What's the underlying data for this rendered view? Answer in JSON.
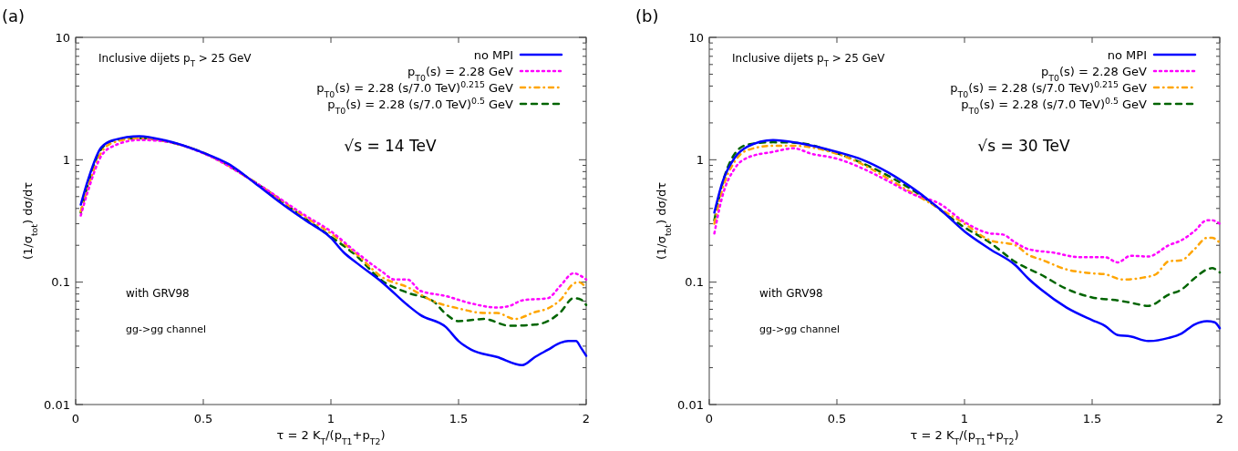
{
  "chart_data": [
    {
      "type": "line",
      "title": "(a)",
      "xlabel": "τ = 2 K$_{T}$/(p$_{T1}$+p$_{T2}$)",
      "ylabel": "(1/σ$_{tot}$) dσ/dτ",
      "log": "y",
      "legend": "top right",
      "grid": false,
      "annotations": [
        "Inclusive dijets p$_{T}$ > 25 GeV",
        "√s = 14 TeV",
        "with GRV98",
        "gg->gg channel"
      ],
      "xlim": [
        0,
        2
      ],
      "xticks": [
        0,
        0.5,
        1,
        1.5,
        2
      ],
      "ylim": [
        0.01,
        10
      ],
      "yticks": [
        0.01,
        {
          "value": 0.02,
          "label": null
        },
        {
          "value": 0.03,
          "label": null
        },
        {
          "value": 0.04,
          "label": null
        },
        {
          "value": 0.05,
          "label": null
        },
        {
          "value": 0.06,
          "label": null
        },
        {
          "value": 0.07,
          "label": null
        },
        {
          "value": 0.08,
          "label": null
        },
        {
          "value": 0.09,
          "label": null
        },
        0.1,
        {
          "value": 0.2,
          "label": null
        },
        {
          "value": 0.3,
          "label": null
        },
        {
          "value": 0.4,
          "label": null
        },
        {
          "value": 0.5,
          "label": null
        },
        {
          "value": 0.6,
          "label": null
        },
        {
          "value": 0.7,
          "label": null
        },
        {
          "value": 0.8,
          "label": null
        },
        {
          "value": 0.9,
          "label": null
        },
        1,
        {
          "value": 2,
          "label": null
        },
        {
          "value": 3,
          "label": null
        },
        {
          "value": 4,
          "label": null
        },
        {
          "value": 5,
          "label": null
        },
        {
          "value": 6,
          "label": null
        },
        {
          "value": 7,
          "label": null
        },
        {
          "value": 8,
          "label": null
        },
        {
          "value": 9,
          "label": null
        },
        10
      ],
      "series": [
        {
          "name": "no MPI",
          "color": "#0000ff",
          "line_style": "solid",
          "x": [
            0.02,
            0.05,
            0.1,
            0.15,
            0.25,
            0.35,
            0.5,
            0.6,
            0.7,
            0.8,
            0.9,
            1.0,
            1.05,
            1.1,
            1.2,
            1.3,
            1.35,
            1.45,
            1.5,
            1.55,
            1.65,
            1.75,
            1.8,
            1.85,
            1.9,
            1.93,
            1.96,
            1.98,
            2.0
          ],
          "values": [
            0.43,
            0.7,
            1.26,
            1.45,
            1.56,
            1.44,
            1.14,
            0.92,
            0.65,
            0.45,
            0.32,
            0.23,
            0.175,
            0.144,
            0.1,
            0.065,
            0.054,
            0.043,
            0.033,
            0.028,
            0.0245,
            0.021,
            0.0245,
            0.028,
            0.032,
            0.033,
            0.033,
            0.029,
            0.025
          ]
        },
        {
          "name": "p$_{T0}$(s) = 2.28 GeV",
          "color": "#ff00ff",
          "line_style": "dotted",
          "x": [
            0.02,
            0.05,
            0.1,
            0.15,
            0.25,
            0.35,
            0.5,
            0.7,
            0.9,
            1.0,
            1.1,
            1.2,
            1.25,
            1.3,
            1.35,
            1.45,
            1.55,
            1.65,
            1.7,
            1.75,
            1.85,
            1.9,
            1.95,
            2.0
          ],
          "values": [
            0.35,
            0.57,
            1.07,
            1.3,
            1.45,
            1.41,
            1.13,
            0.66,
            0.35,
            0.26,
            0.175,
            0.122,
            0.105,
            0.105,
            0.085,
            0.077,
            0.067,
            0.062,
            0.064,
            0.071,
            0.074,
            0.094,
            0.118,
            0.105
          ]
        },
        {
          "name": "p$_{T0}$(s) = 2.28 (s/7.0 TeV)$^{0.215}$ GeV",
          "color": "#ffa500",
          "line_style": "dashdot",
          "x": [
            0.02,
            0.05,
            0.1,
            0.15,
            0.25,
            0.35,
            0.5,
            0.7,
            0.9,
            1.0,
            1.1,
            1.2,
            1.3,
            1.4,
            1.5,
            1.6,
            1.65,
            1.72,
            1.8,
            1.85,
            1.9,
            1.95,
            1.97,
            2.0
          ],
          "values": [
            0.38,
            0.61,
            1.14,
            1.39,
            1.5,
            1.42,
            1.14,
            0.66,
            0.34,
            0.25,
            0.17,
            0.11,
            0.091,
            0.07,
            0.061,
            0.056,
            0.056,
            0.05,
            0.057,
            0.061,
            0.072,
            0.097,
            0.1,
            0.09
          ]
        },
        {
          "name": "p$_{T0}$(s) = 2.28 (s/7.0 TeV)$^{0.5}$ GeV",
          "color": "#006400",
          "line_style": "dashed",
          "x": [
            0.02,
            0.05,
            0.1,
            0.15,
            0.25,
            0.35,
            0.5,
            0.7,
            0.9,
            1.0,
            1.1,
            1.2,
            1.3,
            1.4,
            1.45,
            1.5,
            1.6,
            1.7,
            1.8,
            1.85,
            1.9,
            1.95,
            1.98,
            2.0
          ],
          "values": [
            0.37,
            0.65,
            1.22,
            1.44,
            1.5,
            1.42,
            1.14,
            0.66,
            0.33,
            0.235,
            0.164,
            0.103,
            0.082,
            0.07,
            0.055,
            0.048,
            0.05,
            0.044,
            0.045,
            0.048,
            0.057,
            0.074,
            0.072,
            0.065
          ]
        }
      ]
    },
    {
      "type": "line",
      "title": "(b)",
      "xlabel": "τ = 2 K$_{T}$/(p$_{T1}$+p$_{T2}$)",
      "ylabel": "(1/σ$_{tot}$) dσ/dτ",
      "log": "y",
      "legend": "top right",
      "grid": false,
      "annotations": [
        "Inclusive dijets p$_{T}$ > 25 GeV",
        "√s = 30 TeV",
        "with GRV98",
        "gg->gg channel"
      ],
      "xlim": [
        0,
        2
      ],
      "xticks": [
        0,
        0.5,
        1,
        1.5,
        2
      ],
      "ylim": [
        0.01,
        10
      ],
      "yticks": [
        0.01,
        {
          "value": 0.02,
          "label": null
        },
        {
          "value": 0.03,
          "label": null
        },
        {
          "value": 0.04,
          "label": null
        },
        {
          "value": 0.05,
          "label": null
        },
        {
          "value": 0.06,
          "label": null
        },
        {
          "value": 0.07,
          "label": null
        },
        {
          "value": 0.08,
          "label": null
        },
        {
          "value": 0.09,
          "label": null
        },
        0.1,
        {
          "value": 0.2,
          "label": null
        },
        {
          "value": 0.3,
          "label": null
        },
        {
          "value": 0.4,
          "label": null
        },
        {
          "value": 0.5,
          "label": null
        },
        {
          "value": 0.6,
          "label": null
        },
        {
          "value": 0.7,
          "label": null
        },
        {
          "value": 0.8,
          "label": null
        },
        {
          "value": 0.9,
          "label": null
        },
        1,
        {
          "value": 2,
          "label": null
        },
        {
          "value": 3,
          "label": null
        },
        {
          "value": 4,
          "label": null
        },
        {
          "value": 5,
          "label": null
        },
        {
          "value": 6,
          "label": null
        },
        {
          "value": 7,
          "label": null
        },
        {
          "value": 8,
          "label": null
        },
        {
          "value": 9,
          "label": null
        },
        10
      ],
      "series": [
        {
          "name": "no MPI",
          "color": "#0000ff",
          "line_style": "solid",
          "x": [
            0.02,
            0.05,
            0.1,
            0.15,
            0.25,
            0.35,
            0.5,
            0.6,
            0.7,
            0.8,
            0.9,
            1.0,
            1.1,
            1.2,
            1.25,
            1.3,
            1.4,
            1.5,
            1.55,
            1.6,
            1.65,
            1.72,
            1.8,
            1.85,
            1.9,
            1.95,
            1.98,
            2.0
          ],
          "values": [
            0.37,
            0.64,
            1.04,
            1.28,
            1.45,
            1.37,
            1.16,
            1.0,
            0.79,
            0.58,
            0.4,
            0.26,
            0.186,
            0.137,
            0.107,
            0.087,
            0.062,
            0.049,
            0.044,
            0.037,
            0.036,
            0.033,
            0.035,
            0.038,
            0.045,
            0.048,
            0.047,
            0.042
          ]
        },
        {
          "name": "p$_{T0}$(s) = 2.28 GeV",
          "color": "#ff00ff",
          "line_style": "dotted",
          "x": [
            0.02,
            0.05,
            0.1,
            0.15,
            0.25,
            0.33,
            0.4,
            0.5,
            0.6,
            0.7,
            0.8,
            0.9,
            1.0,
            1.1,
            1.15,
            1.2,
            1.25,
            1.35,
            1.45,
            1.5,
            1.55,
            1.6,
            1.65,
            1.72,
            1.8,
            1.85,
            1.9,
            1.95,
            1.97,
            2.0
          ],
          "values": [
            0.25,
            0.49,
            0.85,
            1.04,
            1.16,
            1.24,
            1.12,
            1.02,
            0.85,
            0.67,
            0.52,
            0.44,
            0.31,
            0.25,
            0.245,
            0.21,
            0.186,
            0.174,
            0.16,
            0.16,
            0.16,
            0.145,
            0.164,
            0.162,
            0.2,
            0.22,
            0.26,
            0.32,
            0.32,
            0.3
          ]
        },
        {
          "name": "p$_{T0}$(s) = 2.28 (s/7.0 TeV)$^{0.215}$ GeV",
          "color": "#ffa500",
          "line_style": "dashdot",
          "x": [
            0.02,
            0.05,
            0.1,
            0.15,
            0.25,
            0.33,
            0.5,
            0.8,
            1.0,
            1.1,
            1.2,
            1.25,
            1.3,
            1.4,
            1.5,
            1.55,
            1.62,
            1.7,
            1.75,
            1.8,
            1.85,
            1.9,
            1.95,
            1.97,
            2.0
          ],
          "values": [
            0.3,
            0.56,
            0.97,
            1.2,
            1.3,
            1.3,
            1.12,
            0.53,
            0.3,
            0.22,
            0.2,
            0.167,
            0.153,
            0.127,
            0.118,
            0.116,
            0.105,
            0.109,
            0.116,
            0.148,
            0.151,
            0.185,
            0.23,
            0.23,
            0.21
          ]
        },
        {
          "name": "p$_{T0}$(s) = 2.28 (s/7.0 TeV)$^{0.5}$ GeV",
          "color": "#006400",
          "line_style": "dashed",
          "x": [
            0.02,
            0.05,
            0.1,
            0.15,
            0.25,
            0.35,
            0.5,
            0.8,
            1.0,
            1.1,
            1.2,
            1.3,
            1.4,
            1.5,
            1.6,
            1.65,
            1.72,
            1.8,
            1.85,
            1.9,
            1.95,
            1.97,
            2.0
          ],
          "values": [
            0.32,
            0.62,
            1.12,
            1.33,
            1.39,
            1.37,
            1.13,
            0.56,
            0.28,
            0.21,
            0.146,
            0.115,
            0.088,
            0.075,
            0.071,
            0.068,
            0.064,
            0.079,
            0.087,
            0.107,
            0.127,
            0.13,
            0.12
          ]
        }
      ]
    }
  ]
}
